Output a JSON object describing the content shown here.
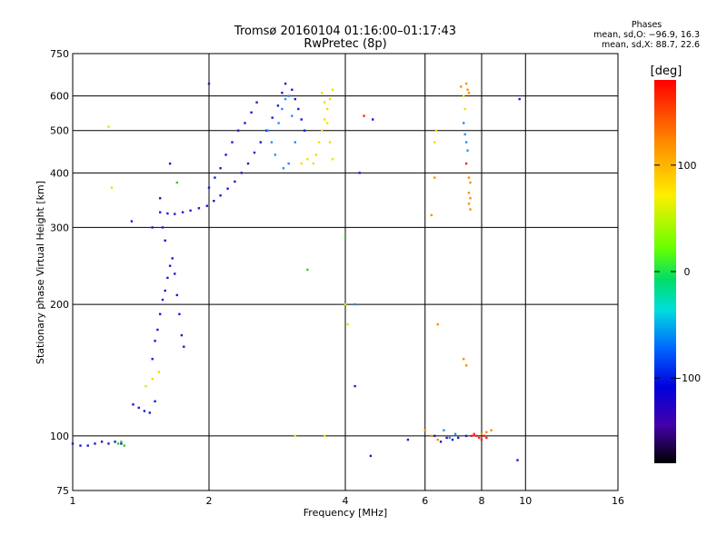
{
  "header": {
    "title": "Tromsø 20160104 01:16:00–01:17:43",
    "subtitle": "RwPretec (8p)"
  },
  "phases": {
    "heading": "Phases",
    "line_o": "mean, sd,O: −96.9, 16.3",
    "line_x": "mean, sd,X:  88.7, 22.6"
  },
  "colorbar": {
    "label": "[deg]",
    "ticks": [
      {
        "value": 100,
        "label": "100"
      },
      {
        "value": 0,
        "label": "0"
      },
      {
        "value": -100,
        "label": "−100"
      }
    ],
    "range": [
      -180,
      180
    ]
  },
  "chart_data": {
    "type": "scatter",
    "title": "Tromsø 20160104 01:16:00–01:17:43",
    "subtitle": "RwPretec (8p)",
    "xlabel": "Frequency [MHz]",
    "ylabel": "Stationary phase Virtual Height [km]",
    "xscale": "log",
    "yscale": "log",
    "xlim": [
      1,
      16
    ],
    "ylim": [
      75,
      750
    ],
    "xticks": [
      1,
      2,
      4,
      6,
      8,
      10,
      16
    ],
    "yticks": [
      75,
      100,
      200,
      300,
      400,
      500,
      600,
      750
    ],
    "grid": true,
    "color_encoding": "phase in degrees",
    "series": [
      {
        "color": "#1a1ad6",
        "points": [
          [
            1.0,
            96
          ],
          [
            1.04,
            95
          ],
          [
            1.08,
            95
          ],
          [
            1.12,
            96
          ],
          [
            1.16,
            97
          ],
          [
            1.2,
            96
          ],
          [
            1.24,
            97
          ],
          [
            1.28,
            96
          ],
          [
            1.36,
            118
          ],
          [
            1.4,
            116
          ],
          [
            1.44,
            114
          ],
          [
            1.48,
            113
          ],
          [
            1.52,
            120
          ],
          [
            1.5,
            150
          ],
          [
            1.52,
            165
          ],
          [
            1.54,
            175
          ],
          [
            1.56,
            190
          ],
          [
            1.58,
            205
          ],
          [
            1.6,
            215
          ],
          [
            1.62,
            230
          ],
          [
            1.64,
            245
          ],
          [
            1.66,
            255
          ],
          [
            1.68,
            235
          ],
          [
            1.7,
            210
          ],
          [
            1.72,
            190
          ],
          [
            1.74,
            170
          ],
          [
            1.76,
            160
          ],
          [
            1.6,
            280
          ],
          [
            1.58,
            300
          ],
          [
            1.56,
            325
          ],
          [
            1.62,
            323
          ],
          [
            1.68,
            322
          ],
          [
            1.75,
            325
          ],
          [
            1.82,
            328
          ],
          [
            1.9,
            332
          ],
          [
            1.98,
            336
          ],
          [
            2.05,
            345
          ],
          [
            2.12,
            355
          ],
          [
            2.2,
            368
          ],
          [
            2.28,
            382
          ],
          [
            2.36,
            400
          ],
          [
            2.44,
            420
          ],
          [
            2.52,
            445
          ],
          [
            2.6,
            470
          ],
          [
            2.68,
            500
          ],
          [
            2.76,
            535
          ],
          [
            2.84,
            570
          ],
          [
            2.9,
            610
          ],
          [
            2.95,
            640
          ],
          [
            3.05,
            620
          ],
          [
            3.1,
            590
          ],
          [
            3.15,
            560
          ],
          [
            3.2,
            530
          ],
          [
            3.25,
            500
          ],
          [
            2.0,
            370
          ],
          [
            2.06,
            390
          ],
          [
            2.12,
            410
          ],
          [
            2.18,
            440
          ],
          [
            2.25,
            470
          ],
          [
            2.32,
            500
          ],
          [
            2.4,
            520
          ],
          [
            2.48,
            550
          ],
          [
            2.55,
            580
          ],
          [
            1.56,
            350
          ],
          [
            1.64,
            420
          ],
          [
            2.0,
            640
          ],
          [
            4.3,
            400
          ],
          [
            4.6,
            530
          ],
          [
            4.2,
            130
          ],
          [
            4.55,
            90
          ],
          [
            5.5,
            98
          ],
          [
            6.3,
            100
          ],
          [
            6.5,
            97
          ],
          [
            6.7,
            99
          ],
          [
            6.9,
            98
          ],
          [
            7.1,
            99
          ],
          [
            7.4,
            100
          ],
          [
            9.6,
            88
          ],
          [
            9.7,
            590
          ],
          [
            1.35,
            310
          ],
          [
            1.5,
            300
          ]
        ]
      },
      {
        "color": "#2a8cff",
        "points": [
          [
            2.7,
            500
          ],
          [
            2.75,
            470
          ],
          [
            2.8,
            440
          ],
          [
            2.85,
            520
          ],
          [
            2.9,
            560
          ],
          [
            2.95,
            590
          ],
          [
            3.0,
            600
          ],
          [
            3.05,
            540
          ],
          [
            3.1,
            470
          ],
          [
            2.92,
            410
          ],
          [
            3.0,
            420
          ],
          [
            7.3,
            520
          ],
          [
            7.35,
            490
          ],
          [
            7.4,
            470
          ],
          [
            7.45,
            450
          ],
          [
            6.6,
            103
          ],
          [
            6.8,
            99
          ],
          [
            7.0,
            101
          ],
          [
            4.2,
            200
          ]
        ]
      },
      {
        "color": "#f0e000",
        "points": [
          [
            3.4,
            420
          ],
          [
            3.45,
            440
          ],
          [
            3.5,
            470
          ],
          [
            3.55,
            500
          ],
          [
            3.6,
            530
          ],
          [
            3.65,
            560
          ],
          [
            3.7,
            590
          ],
          [
            3.75,
            620
          ],
          [
            3.55,
            610
          ],
          [
            3.6,
            580
          ],
          [
            3.65,
            520
          ],
          [
            3.7,
            470
          ],
          [
            3.75,
            430
          ],
          [
            3.3,
            430
          ],
          [
            3.2,
            420
          ],
          [
            1.2,
            510
          ],
          [
            1.22,
            370
          ],
          [
            1.45,
            130
          ],
          [
            1.5,
            135
          ],
          [
            1.55,
            140
          ],
          [
            3.1,
            100
          ],
          [
            3.6,
            100
          ],
          [
            4.0,
            200
          ],
          [
            4.05,
            180
          ],
          [
            6.3,
            470
          ],
          [
            6.35,
            500
          ],
          [
            7.3,
            600
          ],
          [
            7.35,
            560
          ]
        ]
      },
      {
        "color": "#33cc33",
        "points": [
          [
            1.26,
            96
          ],
          [
            1.28,
            97
          ],
          [
            1.3,
            95
          ],
          [
            1.7,
            380
          ],
          [
            3.3,
            240
          ],
          [
            4.0,
            285
          ]
        ]
      },
      {
        "color": "#ff8c00",
        "points": [
          [
            7.5,
            390
          ],
          [
            7.55,
            380
          ],
          [
            7.5,
            360
          ],
          [
            7.55,
            350
          ],
          [
            7.5,
            340
          ],
          [
            7.55,
            330
          ],
          [
            7.3,
            150
          ],
          [
            7.4,
            145
          ],
          [
            6.0,
            103
          ],
          [
            6.2,
            100
          ],
          [
            6.4,
            98
          ],
          [
            8.0,
            101
          ],
          [
            8.2,
            102
          ],
          [
            8.4,
            103
          ],
          [
            6.2,
            320
          ],
          [
            6.3,
            390
          ],
          [
            6.4,
            180
          ],
          [
            7.4,
            640
          ],
          [
            7.45,
            620
          ],
          [
            7.5,
            610
          ],
          [
            7.2,
            630
          ]
        ]
      },
      {
        "color": "#ff2020",
        "points": [
          [
            7.8,
            100
          ],
          [
            7.9,
            99
          ],
          [
            8.0,
            98
          ],
          [
            8.1,
            100
          ],
          [
            8.2,
            99
          ],
          [
            7.7,
            101
          ],
          [
            7.6,
            100
          ],
          [
            7.4,
            420
          ],
          [
            4.4,
            540
          ]
        ]
      }
    ]
  }
}
